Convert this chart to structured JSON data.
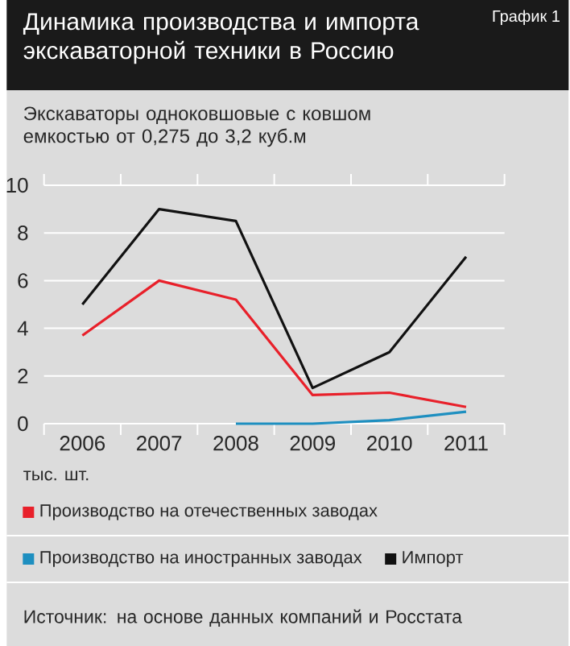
{
  "chart_data": {
    "type": "line",
    "title": "Динамика производства и импорта экскаваторной техники в Россию",
    "subtitle": "Экскаваторы одноковшовые с ковшом емкостью от 0,275 до 3,2 куб.м",
    "ylabel": "тыс. шт.",
    "categories": [
      "2006",
      "2007",
      "2008",
      "2009",
      "2010",
      "2011"
    ],
    "series": [
      {
        "name": "Производство на отечественных заводах",
        "color": "#e8202a",
        "values": [
          3.7,
          6.0,
          5.2,
          1.2,
          1.3,
          0.7
        ]
      },
      {
        "name": "Производство на иностранных заводах",
        "color": "#1e8fc0",
        "values": [
          null,
          null,
          0,
          0,
          0.15,
          0.5
        ]
      },
      {
        "name": "Импорт",
        "color": "#111111",
        "values": [
          5,
          9,
          8.5,
          1.5,
          3,
          7
        ]
      }
    ],
    "ylim": [
      0,
      10
    ],
    "yticks": [
      0,
      2,
      4,
      6,
      8,
      10
    ],
    "grid": "y",
    "legend": "bottom",
    "annotations": [
      "График 1",
      "Источник: на основе данных компаний и Росстата"
    ]
  }
}
